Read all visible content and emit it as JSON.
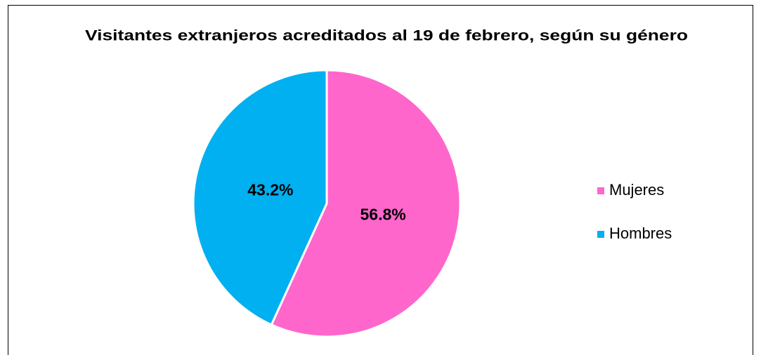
{
  "chart_data": {
    "type": "pie",
    "title": "Visitantes extranjeros acreditados al 19 de febrero, según su género",
    "categories": [
      "Mujeres",
      "Hombres"
    ],
    "values": [
      56.8,
      43.2
    ],
    "value_labels": [
      "56.8%",
      "43.2%"
    ],
    "colors": [
      "#ff66cc",
      "#00b0f0"
    ],
    "legend": "right"
  }
}
